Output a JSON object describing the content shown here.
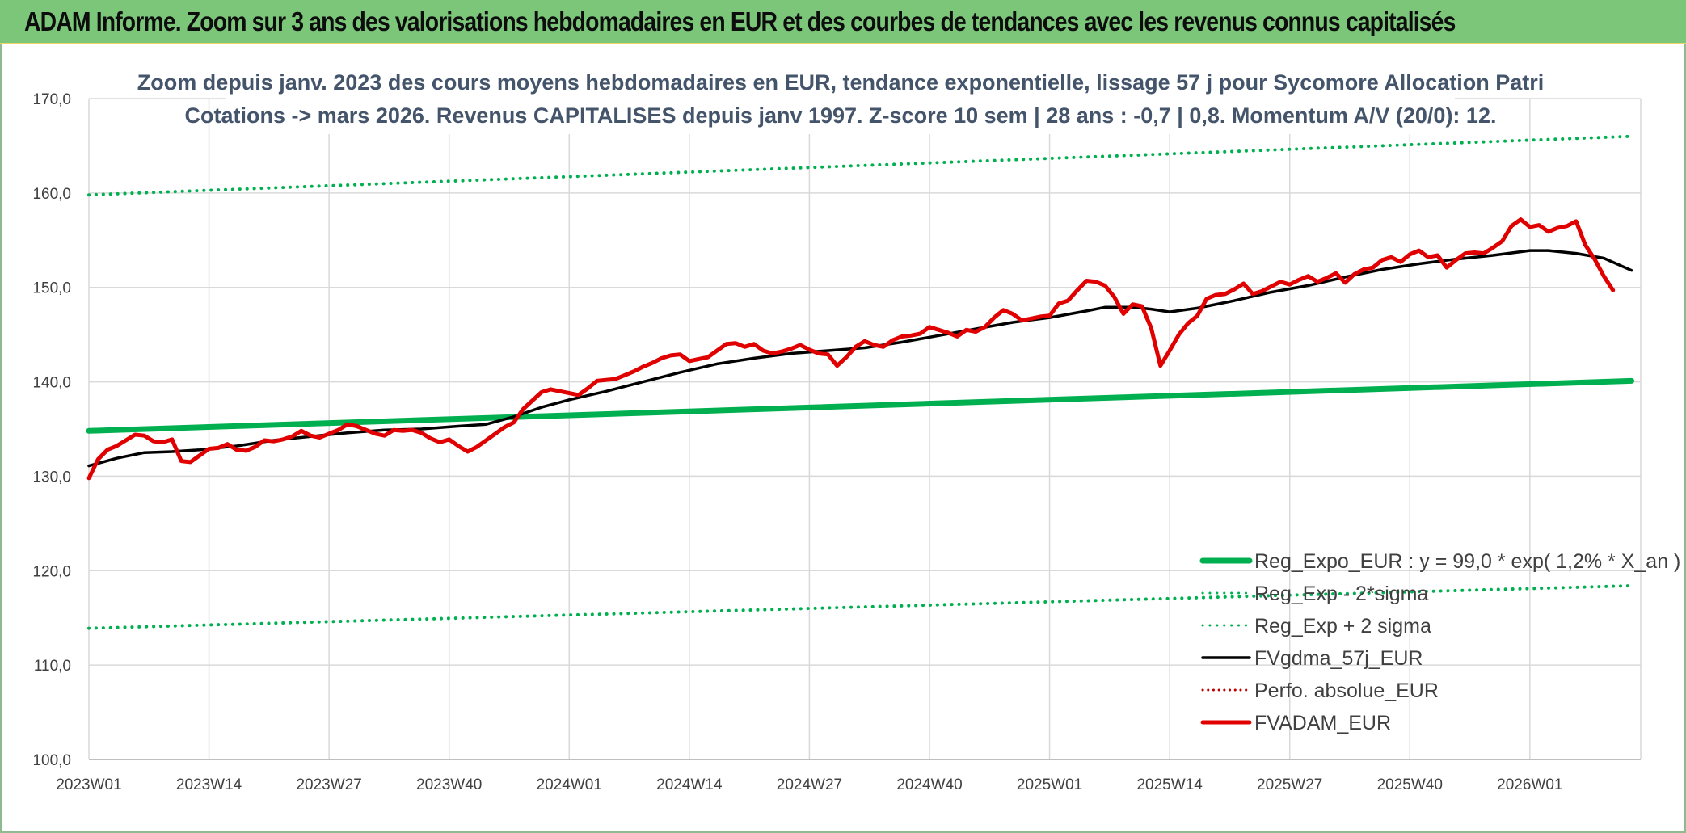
{
  "header": {
    "title": "ADAM Informe. Zoom sur 3 ans des valorisations hebdomadaires en EUR et des courbes de tendances avec les revenus connus capitalisés"
  },
  "chart_data": {
    "type": "line",
    "title": [
      "Zoom depuis janv. 2023 des cours moyens hebdomadaires en EUR, tendance exponentielle, lissage 57 j pour Sycomore Allocation Patri",
      "Cotations -> mars 2026. Revenus CAPITALISES depuis janv 1997. Z-score 10 sem | 28 ans : -0,7 | 0,8. Momentum A/V (20/0): 12."
    ],
    "xlabel": "",
    "ylabel": "",
    "ylim": [
      100,
      170
    ],
    "yticks": [
      "100,0",
      "110,0",
      "120,0",
      "130,0",
      "140,0",
      "150,0",
      "160,0",
      "170,0"
    ],
    "xlim": [
      0,
      168
    ],
    "xticks": [
      {
        "label": "2023W01",
        "x": 0
      },
      {
        "label": "2023W14",
        "x": 13
      },
      {
        "label": "2023W27",
        "x": 26
      },
      {
        "label": "2023W40",
        "x": 39
      },
      {
        "label": "2024W01",
        "x": 52
      },
      {
        "label": "2024W14",
        "x": 65
      },
      {
        "label": "2024W27",
        "x": 78
      },
      {
        "label": "2024W40",
        "x": 91
      },
      {
        "label": "2025W01",
        "x": 104
      },
      {
        "label": "2025W14",
        "x": 117
      },
      {
        "label": "2025W27",
        "x": 130
      },
      {
        "label": "2025W40",
        "x": 143
      },
      {
        "label": "2026W01",
        "x": 156
      }
    ],
    "grid": true,
    "legend_position": "bottom-right",
    "series": [
      {
        "name": "Reg_Expo_EUR : y = 99,0 * exp( 1,2% *  X_an )",
        "color": "#00b050",
        "style": "solid",
        "width": 7,
        "points": [
          [
            0,
            134.8
          ],
          [
            167,
            140.1
          ]
        ]
      },
      {
        "name": "Reg_Exp - 2*sigma",
        "color": "#00b050",
        "style": "dotted",
        "width": 4,
        "points": [
          [
            0,
            113.9
          ],
          [
            167,
            118.4
          ]
        ]
      },
      {
        "name": "Reg_Exp + 2 sigma",
        "color": "#00b050",
        "style": "dotted",
        "width": 4,
        "points": [
          [
            0,
            159.8
          ],
          [
            167,
            166.0
          ]
        ]
      },
      {
        "name": "FVgdma_57j_EUR",
        "color": "#000000",
        "style": "solid",
        "width": 3.5,
        "points": [
          [
            0,
            131.1
          ],
          [
            3,
            131.9
          ],
          [
            6,
            132.5
          ],
          [
            9,
            132.6
          ],
          [
            12,
            132.8
          ],
          [
            16,
            133.2
          ],
          [
            20,
            133.8
          ],
          [
            24,
            134.2
          ],
          [
            28,
            134.6
          ],
          [
            32,
            134.9
          ],
          [
            36,
            135.0
          ],
          [
            40,
            135.3
          ],
          [
            43,
            135.5
          ],
          [
            46,
            136.3
          ],
          [
            49,
            137.3
          ],
          [
            52,
            138.1
          ],
          [
            56,
            139.0
          ],
          [
            60,
            140.0
          ],
          [
            64,
            141.0
          ],
          [
            68,
            141.9
          ],
          [
            72,
            142.5
          ],
          [
            76,
            143.0
          ],
          [
            80,
            143.3
          ],
          [
            84,
            143.6
          ],
          [
            88,
            144.2
          ],
          [
            92,
            144.9
          ],
          [
            96,
            145.6
          ],
          [
            100,
            146.3
          ],
          [
            104,
            146.8
          ],
          [
            108,
            147.5
          ],
          [
            110,
            147.9
          ],
          [
            113,
            147.9
          ],
          [
            115,
            147.7
          ],
          [
            117,
            147.4
          ],
          [
            120,
            147.8
          ],
          [
            124,
            148.6
          ],
          [
            128,
            149.5
          ],
          [
            132,
            150.2
          ],
          [
            136,
            151.1
          ],
          [
            140,
            151.9
          ],
          [
            144,
            152.5
          ],
          [
            148,
            153.0
          ],
          [
            152,
            153.4
          ],
          [
            156,
            153.9
          ],
          [
            158,
            153.9
          ],
          [
            161,
            153.6
          ],
          [
            164,
            153.1
          ],
          [
            167,
            151.8
          ]
        ]
      },
      {
        "name": "Perfo. absolue_EUR",
        "color": "#c00000",
        "style": "dotted",
        "width": 3,
        "points": []
      },
      {
        "name": "FVADAM_EUR",
        "color": "#e00000",
        "style": "solid",
        "width": 5,
        "points": [
          [
            0,
            129.8
          ],
          [
            1,
            131.8
          ],
          [
            2,
            132.8
          ],
          [
            3,
            133.2
          ],
          [
            4,
            133.8
          ],
          [
            5,
            134.4
          ],
          [
            6,
            134.3
          ],
          [
            7,
            133.7
          ],
          [
            8,
            133.6
          ],
          [
            9,
            133.9
          ],
          [
            10,
            131.6
          ],
          [
            11,
            131.5
          ],
          [
            12,
            132.2
          ],
          [
            13,
            132.9
          ],
          [
            14,
            133.0
          ],
          [
            15,
            133.4
          ],
          [
            16,
            132.8
          ],
          [
            17,
            132.7
          ],
          [
            18,
            133.1
          ],
          [
            19,
            133.8
          ],
          [
            20,
            133.7
          ],
          [
            21,
            133.9
          ],
          [
            22,
            134.2
          ],
          [
            23,
            134.8
          ],
          [
            24,
            134.3
          ],
          [
            25,
            134.1
          ],
          [
            26,
            134.5
          ],
          [
            27,
            134.9
          ],
          [
            28,
            135.5
          ],
          [
            29,
            135.3
          ],
          [
            30,
            134.9
          ],
          [
            31,
            134.5
          ],
          [
            32,
            134.3
          ],
          [
            33,
            134.9
          ],
          [
            34,
            134.8
          ],
          [
            35,
            134.9
          ],
          [
            36,
            134.6
          ],
          [
            37,
            134.0
          ],
          [
            38,
            133.6
          ],
          [
            39,
            133.9
          ],
          [
            40,
            133.2
          ],
          [
            41,
            132.6
          ],
          [
            42,
            133.1
          ],
          [
            43,
            133.8
          ],
          [
            44,
            134.5
          ],
          [
            45,
            135.2
          ],
          [
            46,
            135.7
          ],
          [
            47,
            137.1
          ],
          [
            48,
            138.0
          ],
          [
            49,
            138.9
          ],
          [
            50,
            139.2
          ],
          [
            51,
            139.0
          ],
          [
            52,
            138.8
          ],
          [
            53,
            138.6
          ],
          [
            54,
            139.3
          ],
          [
            55,
            140.1
          ],
          [
            56,
            140.2
          ],
          [
            57,
            140.3
          ],
          [
            58,
            140.7
          ],
          [
            59,
            141.1
          ],
          [
            60,
            141.6
          ],
          [
            61,
            142.0
          ],
          [
            62,
            142.5
          ],
          [
            63,
            142.8
          ],
          [
            64,
            142.9
          ],
          [
            65,
            142.2
          ],
          [
            66,
            142.4
          ],
          [
            67,
            142.6
          ],
          [
            68,
            143.3
          ],
          [
            69,
            144.0
          ],
          [
            70,
            144.1
          ],
          [
            71,
            143.7
          ],
          [
            72,
            144.0
          ],
          [
            73,
            143.3
          ],
          [
            74,
            143.0
          ],
          [
            75,
            143.2
          ],
          [
            76,
            143.5
          ],
          [
            77,
            143.9
          ],
          [
            78,
            143.4
          ],
          [
            79,
            143.0
          ],
          [
            80,
            142.9
          ],
          [
            81,
            141.7
          ],
          [
            82,
            142.6
          ],
          [
            83,
            143.7
          ],
          [
            84,
            144.3
          ],
          [
            85,
            143.9
          ],
          [
            86,
            143.7
          ],
          [
            87,
            144.4
          ],
          [
            88,
            144.8
          ],
          [
            89,
            144.9
          ],
          [
            90,
            145.1
          ],
          [
            91,
            145.8
          ],
          [
            92,
            145.5
          ],
          [
            93,
            145.2
          ],
          [
            94,
            144.8
          ],
          [
            95,
            145.5
          ],
          [
            96,
            145.3
          ],
          [
            97,
            145.8
          ],
          [
            98,
            146.8
          ],
          [
            99,
            147.6
          ],
          [
            100,
            147.2
          ],
          [
            101,
            146.5
          ],
          [
            102,
            146.7
          ],
          [
            103,
            146.9
          ],
          [
            104,
            147.0
          ],
          [
            105,
            148.3
          ],
          [
            106,
            148.6
          ],
          [
            107,
            149.7
          ],
          [
            108,
            150.7
          ],
          [
            109,
            150.6
          ],
          [
            110,
            150.2
          ],
          [
            111,
            149.0
          ],
          [
            112,
            147.2
          ],
          [
            113,
            148.2
          ],
          [
            114,
            148.0
          ],
          [
            115,
            145.7
          ],
          [
            116,
            141.7
          ],
          [
            117,
            143.3
          ],
          [
            118,
            145.0
          ],
          [
            119,
            146.2
          ],
          [
            120,
            147.0
          ],
          [
            121,
            148.8
          ],
          [
            122,
            149.2
          ],
          [
            123,
            149.3
          ],
          [
            124,
            149.8
          ],
          [
            125,
            150.4
          ],
          [
            126,
            149.3
          ],
          [
            127,
            149.6
          ],
          [
            128,
            150.1
          ],
          [
            129,
            150.6
          ],
          [
            130,
            150.3
          ],
          [
            131,
            150.8
          ],
          [
            132,
            151.2
          ],
          [
            133,
            150.6
          ],
          [
            134,
            151.0
          ],
          [
            135,
            151.5
          ],
          [
            136,
            150.5
          ],
          [
            137,
            151.4
          ],
          [
            138,
            151.9
          ],
          [
            139,
            152.1
          ],
          [
            140,
            152.9
          ],
          [
            141,
            153.2
          ],
          [
            142,
            152.7
          ],
          [
            143,
            153.5
          ],
          [
            144,
            153.9
          ],
          [
            145,
            153.2
          ],
          [
            146,
            153.4
          ],
          [
            147,
            152.1
          ],
          [
            148,
            152.9
          ],
          [
            149,
            153.6
          ],
          [
            150,
            153.7
          ],
          [
            151,
            153.6
          ],
          [
            152,
            154.2
          ],
          [
            153,
            154.9
          ],
          [
            154,
            156.5
          ],
          [
            155,
            157.2
          ],
          [
            156,
            156.4
          ],
          [
            157,
            156.6
          ],
          [
            158,
            155.9
          ],
          [
            159,
            156.3
          ],
          [
            160,
            156.5
          ],
          [
            161,
            157.0
          ],
          [
            162,
            154.5
          ],
          [
            163,
            153.0
          ],
          [
            164,
            151.2
          ],
          [
            165,
            149.7
          ]
        ]
      }
    ]
  }
}
